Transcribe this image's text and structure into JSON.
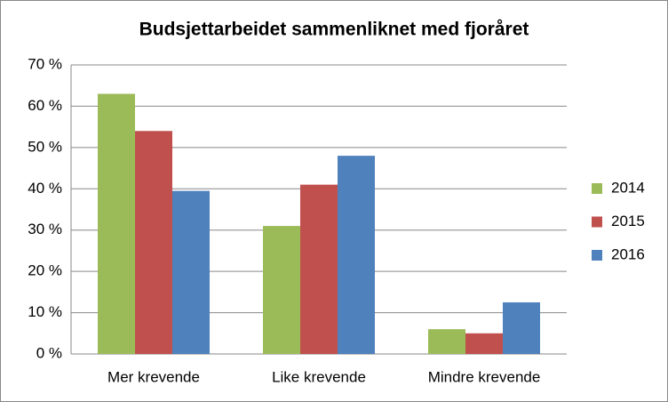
{
  "chart_data": {
    "type": "bar",
    "title": "Budsjettarbeidet sammenliknet med fjoråret",
    "categories": [
      "Mer krevende",
      "Like krevende",
      "Mindre krevende"
    ],
    "series": [
      {
        "name": "2014",
        "color": "#9bbb59",
        "values": [
          63,
          31,
          6
        ]
      },
      {
        "name": "2015",
        "color": "#c0504d",
        "values": [
          54,
          41,
          5
        ]
      },
      {
        "name": "2016",
        "color": "#4f81bd",
        "values": [
          39.5,
          48,
          12.5
        ]
      }
    ],
    "ylim": [
      0,
      70
    ],
    "yticks": [
      {
        "value": 0,
        "label": "0 %"
      },
      {
        "value": 10,
        "label": "10 %"
      },
      {
        "value": 20,
        "label": "20 %"
      },
      {
        "value": 30,
        "label": "30 %"
      },
      {
        "value": 40,
        "label": "40 %"
      },
      {
        "value": 50,
        "label": "50 %"
      },
      {
        "value": 60,
        "label": "60 %"
      },
      {
        "value": 70,
        "label": "70 %"
      }
    ],
    "grid": true,
    "legend": "right"
  }
}
